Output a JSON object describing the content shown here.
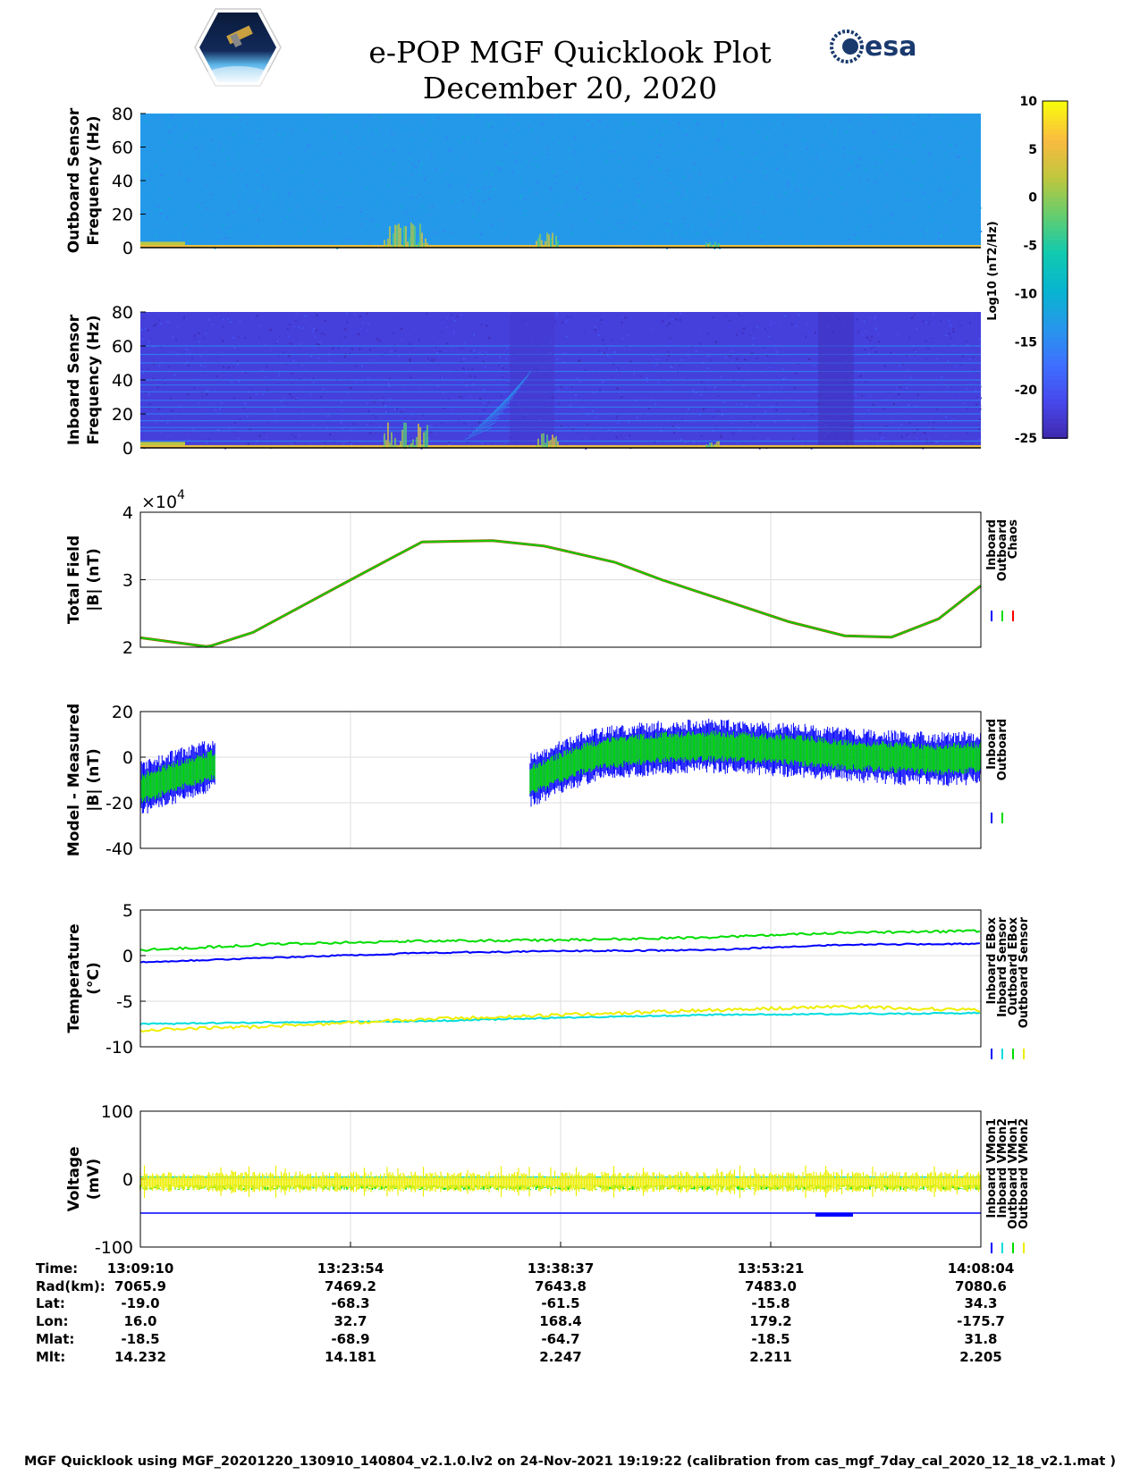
{
  "title": "e-POP MGF Quicklook Plot",
  "subtitle": "December 20, 2020",
  "logos": {
    "left": "cassiope-mission-logo",
    "right_text": "esa"
  },
  "colorbar": {
    "label": "Log10 (nT2/Hz)",
    "ticks": [
      "10",
      "5",
      "0",
      "-5",
      "-10",
      "-15",
      "-20",
      "-25"
    ],
    "range": [
      -25,
      10
    ]
  },
  "chart_data": [
    {
      "type": "heatmap",
      "ylabel": [
        "Outboard Sensor",
        "Frequency (Hz)"
      ],
      "ylim": [
        0,
        80
      ],
      "yticks": [
        "0",
        "20",
        "40",
        "60",
        "80"
      ],
      "background_level": -13,
      "features": [
        {
          "description_level": "low-frequency band near 0-2 Hz",
          "value": 5
        }
      ]
    },
    {
      "type": "heatmap",
      "ylabel": [
        "Inboard Sensor",
        "Frequency (Hz)"
      ],
      "ylim": [
        0,
        80
      ],
      "yticks": [
        "0",
        "20",
        "40",
        "60",
        "80"
      ],
      "background_level": -22,
      "lines_hz": [
        4,
        10,
        12,
        16,
        20,
        24,
        28,
        33,
        37,
        40,
        45,
        50,
        55,
        60
      ]
    },
    {
      "type": "line",
      "ylabel": [
        "Total Field",
        "|B| (nT)"
      ],
      "ylim": [
        2,
        4
      ],
      "yticks": [
        "2",
        "3",
        "4"
      ],
      "exponent": "×10^4",
      "exponent_label": "×10",
      "exponent_power": "4",
      "legend": [
        "Inboard",
        "Outboard",
        "Chaos"
      ],
      "legend_colors": [
        "#0000ff",
        "#00dd00",
        "#ff0000"
      ],
      "x_min": [
        0,
        14,
        15,
        24,
        44,
        54,
        60,
        75,
        86,
        101,
        111,
        125,
        138,
        150,
        160,
        170,
        179
      ],
      "values_1e4": [
        2.14,
        2.01,
        2.02,
        2.22,
        2.97,
        3.34,
        3.56,
        3.58,
        3.5,
        3.26,
        3.0,
        2.68,
        2.38,
        2.17,
        2.15,
        2.42,
        2.91
      ]
    },
    {
      "type": "line",
      "ylabel": [
        "Model - Measured",
        "|B| (nT)"
      ],
      "ylim": [
        -40,
        20
      ],
      "yticks": [
        "-40",
        "-20",
        "0",
        "20"
      ],
      "legend": [
        "Inboard",
        "Outboard"
      ],
      "legend_colors": [
        "#0000ff",
        "#00dd00"
      ],
      "segments": [
        {
          "x_min": [
            0,
            4,
            8,
            12,
            16
          ],
          "center": [
            -14,
            -11,
            -8,
            -6,
            -3
          ]
        },
        {
          "x_min": [
            83,
            86,
            90,
            95,
            100,
            110,
            120,
            130,
            140,
            150,
            160,
            170,
            179
          ],
          "center": [
            -10,
            -8,
            -4,
            0,
            2,
            4,
            5,
            4,
            3,
            1,
            0,
            -1,
            0
          ]
        }
      ]
    },
    {
      "type": "line",
      "ylabel": [
        "Temperature",
        "(°C)"
      ],
      "ylim": [
        -10,
        5
      ],
      "yticks": [
        "-10",
        "-5",
        "0",
        "5"
      ],
      "legend": [
        "Inboard EBox",
        "Inboard Sensor",
        "Outboard EBox",
        "Outboard Sensor"
      ],
      "legend_colors": [
        "#0000ff",
        "#00dddd",
        "#00dd00",
        "#eeee00"
      ],
      "x_min": [
        0,
        30,
        60,
        90,
        120,
        150,
        179
      ],
      "inboard_ebox": [
        -0.7,
        -0.2,
        0.3,
        0.5,
        0.6,
        1.2,
        1.3
      ],
      "inboard_sensor": [
        -7.5,
        -7.3,
        -7.2,
        -6.8,
        -6.5,
        -6.4,
        -6.3
      ],
      "outboard_ebox": [
        0.6,
        1.3,
        1.6,
        1.7,
        2.0,
        2.5,
        2.7
      ],
      "outboard_sensor": [
        -8.2,
        -7.7,
        -7.0,
        -6.5,
        -6.0,
        -5.6,
        -6.0
      ]
    },
    {
      "type": "line",
      "ylabel": [
        "Voltage",
        "(mV)"
      ],
      "ylim": [
        -100,
        100
      ],
      "yticks": [
        "-100",
        "0",
        "100"
      ],
      "legend": [
        "Inboard VMon1",
        "Inboard VMon2",
        "Outboard VMon1",
        "Outboard VMon2"
      ],
      "legend_colors": [
        "#0000ff",
        "#00dddd",
        "#00dd00",
        "#eeee00"
      ],
      "inboard_vmon1": -50,
      "inboard_vmon2": 3,
      "outboard_vmon1": -12,
      "outboard_vmon2": -5
    }
  ],
  "ephemeris": {
    "labels": [
      "Time:",
      "Rad(km):",
      "Lat:",
      "Lon:",
      "Mlat:",
      "Mlt:"
    ],
    "columns": [
      [
        "13:09:10",
        "7065.9",
        "-19.0",
        "16.0",
        "-18.5",
        "14.232"
      ],
      [
        "13:23:54",
        "7469.2",
        "-68.3",
        "32.7",
        "-68.9",
        "14.181"
      ],
      [
        "13:38:37",
        "7643.8",
        "-61.5",
        "168.4",
        "-64.7",
        "2.247"
      ],
      [
        "13:53:21",
        "7483.0",
        "-15.8",
        "179.2",
        "-18.5",
        "2.211"
      ],
      [
        "14:08:04",
        "7080.6",
        "34.3",
        "-175.7",
        "31.8",
        "2.205"
      ]
    ]
  },
  "footer": "MGF Quicklook using MGF_20201220_130910_140804_v2.1.0.lv2 on 24-Nov-2021 19:19:22 (calibration from cas_mgf_7day_cal_2020_12_18_v2.1.mat )"
}
